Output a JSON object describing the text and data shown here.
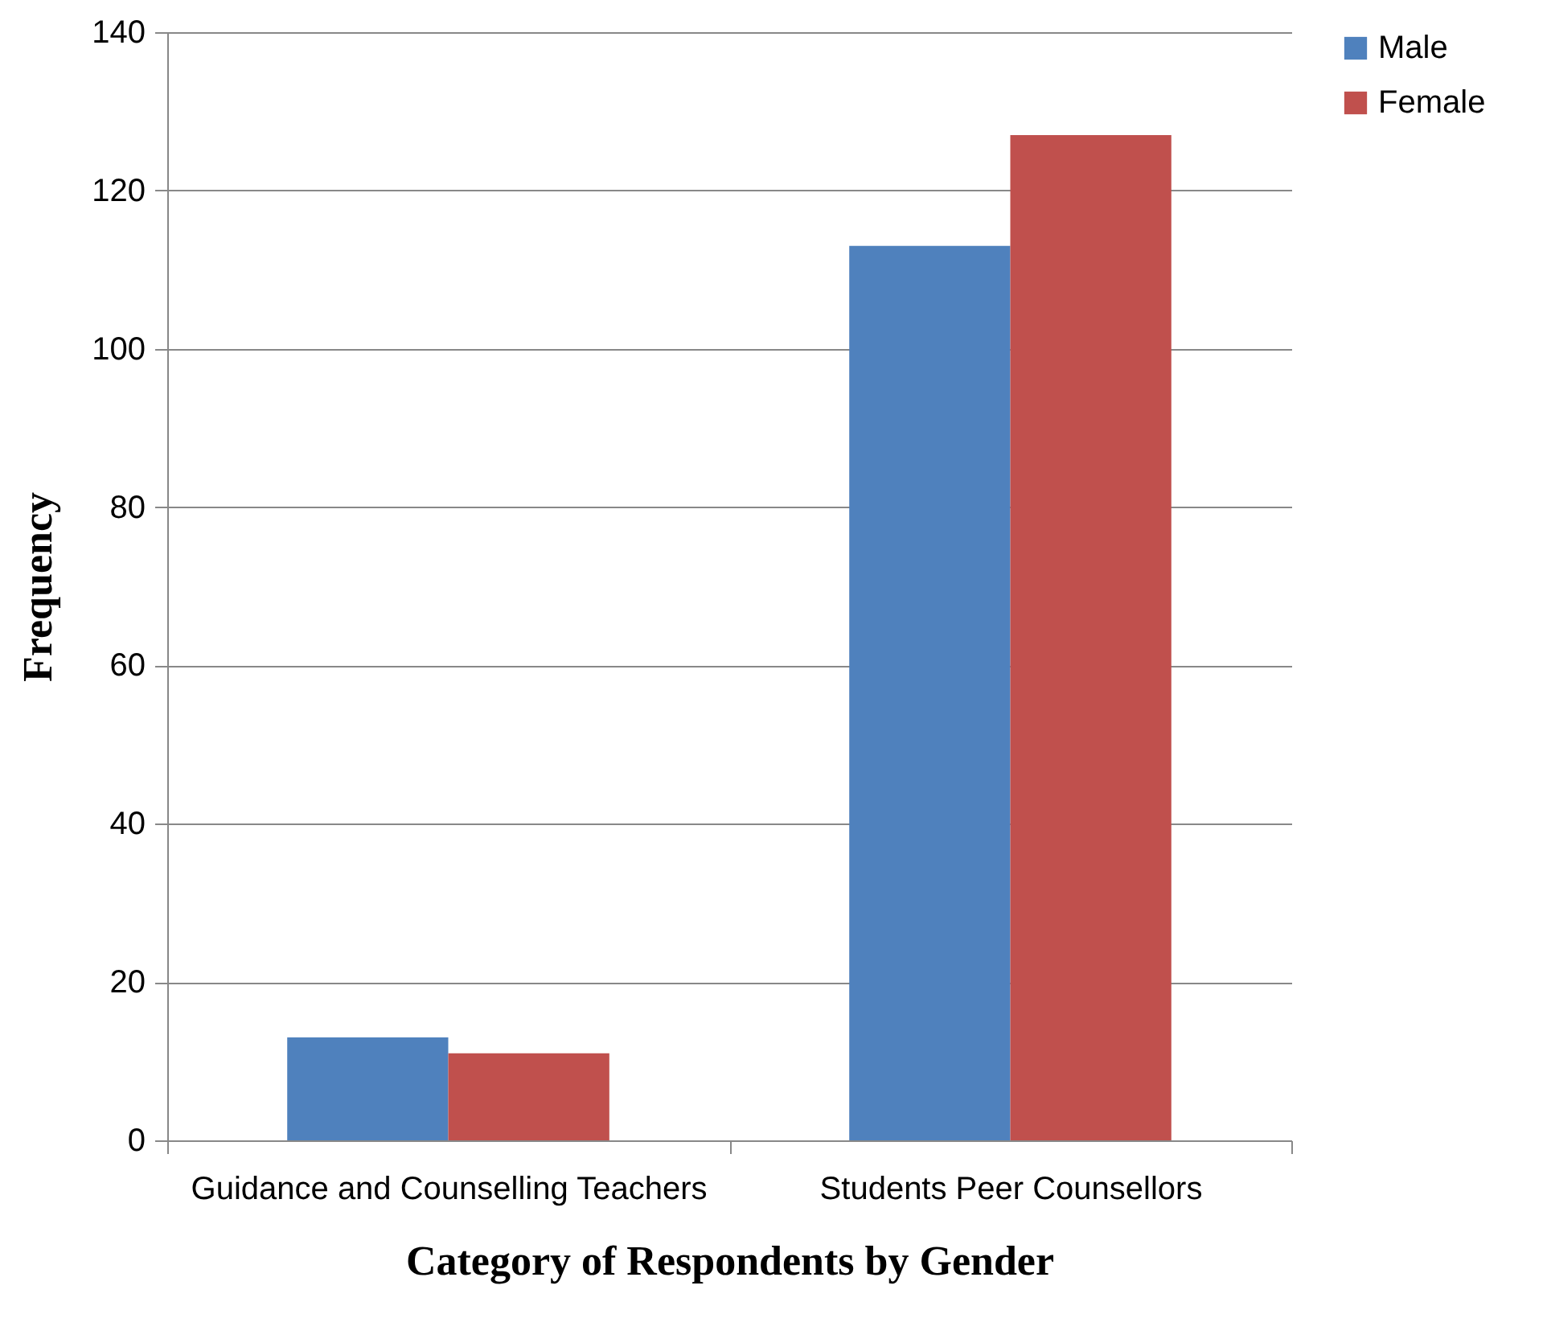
{
  "chart_data": {
    "type": "bar",
    "xlabel": "Category of Respondents by Gender",
    "ylabel": "Frequency",
    "categories": [
      "Guidance and Counselling Teachers",
      "Students Peer Counsellors"
    ],
    "series": [
      {
        "name": "Male",
        "color": "#4f81bd",
        "values": [
          13,
          113
        ]
      },
      {
        "name": "Female",
        "color": "#c0504d",
        "values": [
          11,
          127
        ]
      }
    ],
    "ylim": [
      0,
      140
    ],
    "yticks": [
      0,
      20,
      40,
      60,
      80,
      100,
      120,
      140
    ],
    "grid": "y",
    "legend": "right"
  }
}
